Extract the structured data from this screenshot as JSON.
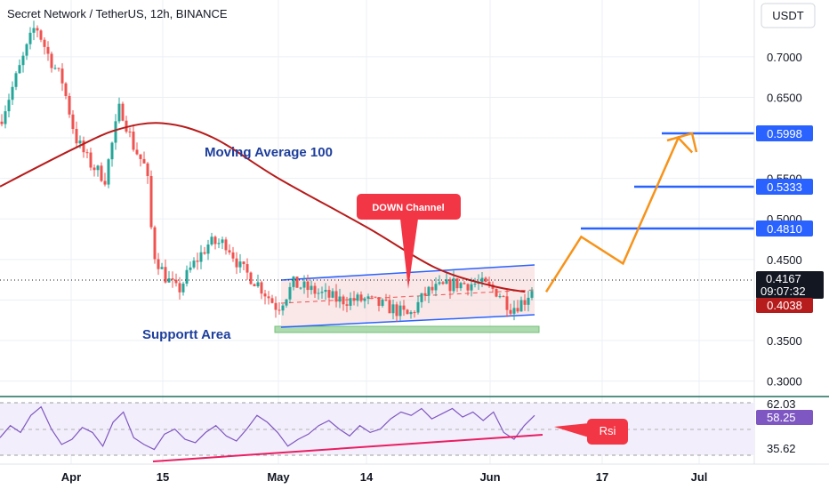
{
  "header": {
    "title": "Secret Network / TetherUS, 12h, BINANCE",
    "currency_button": "USDT"
  },
  "chart_data": [
    {
      "type": "candlestick",
      "title": "Secret Network / TetherUS, 12h, BINANCE",
      "y_ticks": [
        "0.7000",
        "0.6500",
        "0.5500",
        "0.5000",
        "0.4500",
        "0.3500",
        "0.3000"
      ],
      "x_ticks": [
        "Apr",
        "15",
        "May",
        "14",
        "Jun",
        "17",
        "Jul"
      ],
      "ylim": [
        0.27,
        0.77
      ],
      "current_price": "0.4167",
      "countdown": "09:07:32",
      "ma_value": "0.4038",
      "target_levels": [
        "0.5998",
        "0.5333",
        "0.4810"
      ],
      "annotations": {
        "moving_average": "Moving Average 100",
        "down_channel": "DOWN Channel",
        "support": "Supportt Area"
      },
      "series": [
        {
          "name": "Moving Average 100",
          "points": [
            {
              "x": "Mar 21",
              "y": 0.54
            },
            {
              "x": "Apr 1",
              "y": 0.585
            },
            {
              "x": "Apr 8",
              "y": 0.61
            },
            {
              "x": "Apr 15",
              "y": 0.618
            },
            {
              "x": "Apr 22",
              "y": 0.6
            },
            {
              "x": "May 1",
              "y": 0.55
            },
            {
              "x": "May 14",
              "y": 0.49
            },
            {
              "x": "May 24",
              "y": 0.44
            },
            {
              "x": "Jun 1",
              "y": 0.418
            },
            {
              "x": "Jun 6",
              "y": 0.41
            }
          ]
        },
        {
          "name": "Projection",
          "points": [
            {
              "x": "Jun 9",
              "y": 0.41
            },
            {
              "x": "Jun 14",
              "y": 0.478
            },
            {
              "x": "Jun 20",
              "y": 0.445
            },
            {
              "x": "Jun 28",
              "y": 0.6
            },
            {
              "x": "Jun 30",
              "y": 0.582
            }
          ]
        }
      ],
      "colors": {
        "up": "#26a69a",
        "down": "#ef5350",
        "ma": "#b71c1c",
        "channel": "#2962ff",
        "projection": "#f7931a",
        "support": "#81c784"
      }
    },
    {
      "type": "line",
      "name": "Rsi",
      "label": "Rsi",
      "ylim": [
        30,
        68
      ],
      "y_ticks": [
        "62.03",
        "58.25",
        "35.62"
      ],
      "current_value": "58.25",
      "series": [
        {
          "name": "Rsi",
          "values": [
            45,
            52,
            48,
            58,
            63,
            50,
            41,
            44,
            51,
            48,
            40,
            54,
            60,
            45,
            41,
            38,
            47,
            50,
            44,
            42,
            48,
            52,
            46,
            43,
            50,
            58,
            54,
            48,
            40,
            44,
            47,
            52,
            55,
            50,
            46,
            52,
            48,
            50,
            56,
            60,
            58,
            62,
            56,
            59,
            62,
            57,
            60,
            55,
            60,
            48,
            44,
            52,
            58
          ]
        }
      ]
    }
  ]
}
